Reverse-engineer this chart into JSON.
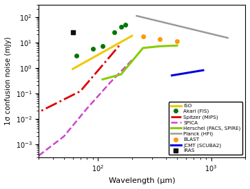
{
  "title": "",
  "xlabel": "Wavelength (μm)",
  "ylabel": "1σ confusion noise (mJy)",
  "xlim": [
    30,
    2000
  ],
  "ylim": [
    0.0003,
    300
  ],
  "series": {
    "ISO": {
      "x": [
        60,
        200
      ],
      "y": [
        0.9,
        18.0
      ],
      "color": "#f0c800",
      "linestyle": "-",
      "linewidth": 2.2,
      "legend": "ISO"
    },
    "Akari": {
      "x": [
        65,
        90,
        110,
        140,
        160,
        175
      ],
      "y": [
        3.0,
        5.5,
        7.0,
        25.0,
        40.0,
        50.0
      ],
      "color": "#007700",
      "markersize": 4,
      "legend": "Akari (FIS)"
    },
    "Spitzer": {
      "x": [
        24,
        70,
        160
      ],
      "y": [
        0.011,
        0.12,
        9.0
      ],
      "color": "#dd0000",
      "linestyle": "-.",
      "linewidth": 2.0,
      "legend": "Spitzer (MIPS)"
    },
    "SPICA": {
      "x": [
        30,
        50,
        80,
        130,
        200
      ],
      "y": [
        0.00035,
        0.002,
        0.025,
        0.28,
        2.0
      ],
      "color": "#cc44cc",
      "linestyle": "--",
      "linewidth": 1.8,
      "legend": "SPICA"
    },
    "Herschel": {
      "x": [
        110,
        160,
        250,
        350,
        500
      ],
      "y": [
        0.35,
        0.55,
        6.0,
        7.0,
        7.5
      ],
      "color": "#88cc00",
      "linestyle": "-",
      "linewidth": 2.2,
      "legend": "Herschel (PACS, SPIRE)"
    },
    "Planck": {
      "x": [
        220,
        1400
      ],
      "y": [
        110,
        15
      ],
      "color": "#999999",
      "linestyle": "-",
      "linewidth": 1.8,
      "legend": "Planck (HFI)"
    },
    "BLAST": {
      "x": [
        250,
        350,
        500
      ],
      "y": [
        17.0,
        13.0,
        11.0
      ],
      "color": "#ff9900",
      "markersize": 4,
      "legend": "BLAST"
    },
    "JCMT": {
      "x": [
        450,
        850
      ],
      "y": [
        0.5,
        0.8
      ],
      "color": "#0000dd",
      "linestyle": "-",
      "linewidth": 2.2,
      "legend": "JCMT (SCUBA2)"
    },
    "IRAS": {
      "x": [
        60
      ],
      "y": [
        25.0
      ],
      "color": "#111111",
      "markersize": 4,
      "legend": "IRAS"
    }
  }
}
